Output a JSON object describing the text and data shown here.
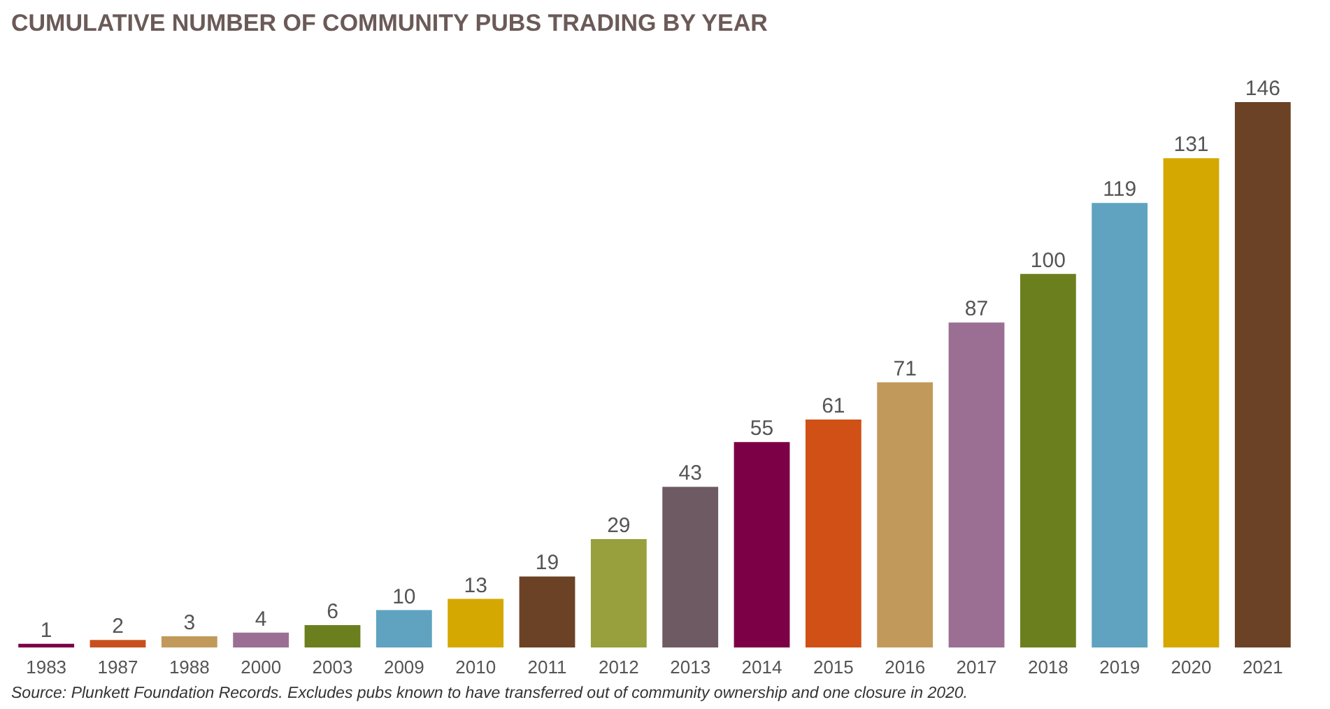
{
  "chart_data": {
    "type": "bar",
    "title": "CUMULATIVE NUMBER OF COMMUNITY PUBS TRADING BY YEAR",
    "categories": [
      "1983",
      "1987",
      "1988",
      "2000",
      "2003",
      "2009",
      "2010",
      "2011",
      "2012",
      "2013",
      "2014",
      "2015",
      "2016",
      "2017",
      "2018",
      "2019",
      "2020",
      "2021"
    ],
    "values": [
      1,
      2,
      3,
      4,
      6,
      10,
      13,
      19,
      29,
      43,
      55,
      61,
      71,
      87,
      100,
      119,
      131,
      146
    ],
    "colors": [
      "#7b0046",
      "#c9501c",
      "#c19a5b",
      "#9b6f93",
      "#6b7f1e",
      "#5fa3c0",
      "#d4a800",
      "#6b4226",
      "#97a03c",
      "#6e5a63",
      "#7b0046",
      "#d05016",
      "#c19a5b",
      "#9b6f93",
      "#6b7f1e",
      "#5fa3c0",
      "#d4a800",
      "#6b4226"
    ],
    "data_labels": true,
    "annotations": [
      "Source: Plunkett Foundation Records. Excludes pubs known to have transferred out of community ownership and one closure in 2020."
    ]
  }
}
